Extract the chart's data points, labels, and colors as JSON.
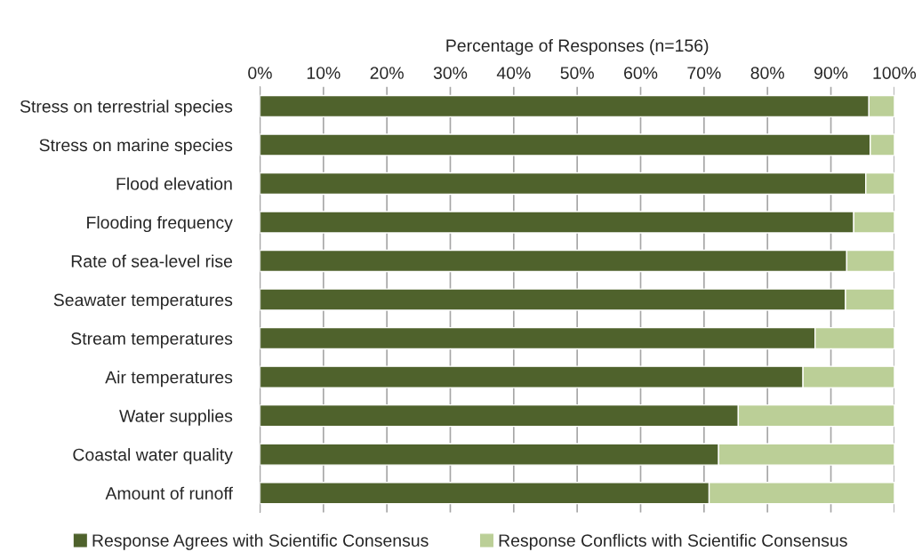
{
  "chart_data": {
    "type": "bar",
    "orientation": "horizontal",
    "stacked": true,
    "xlabel": "Percentage of Responses (n=156)",
    "categories": [
      "Stress on terrestrial species",
      "Stress on marine species",
      "Flood elevation",
      "Flooding frequency",
      "Rate of sea-level rise",
      "Seawater temperatures",
      "Stream temperatures",
      "Air temperatures",
      "Water supplies",
      "Coastal water quality",
      "Amount of runoff"
    ],
    "series": [
      {
        "name": "Response Agrees with Scientific Consensus",
        "color": "#4f622c",
        "values": [
          96.0,
          96.2,
          95.5,
          93.6,
          92.5,
          92.3,
          87.5,
          85.6,
          75.4,
          72.3,
          70.8
        ]
      },
      {
        "name": "Response Conflicts with Scientific Consensus",
        "color": "#bbcf97",
        "values": [
          4.0,
          3.8,
          4.5,
          6.4,
          7.5,
          7.7,
          12.5,
          14.4,
          24.6,
          27.7,
          29.2
        ]
      }
    ],
    "xlim": [
      0,
      100
    ],
    "xticks": [
      {
        "value": 0,
        "label": "0%"
      },
      {
        "value": 10,
        "label": "10%"
      },
      {
        "value": 20,
        "label": "20%"
      },
      {
        "value": 30,
        "label": "30%"
      },
      {
        "value": 40,
        "label": "40%"
      },
      {
        "value": 50,
        "label": "50%"
      },
      {
        "value": 60,
        "label": "60%"
      },
      {
        "value": 70,
        "label": "70%"
      },
      {
        "value": 80,
        "label": "80%"
      },
      {
        "value": 90,
        "label": "90%"
      },
      {
        "value": 100,
        "label": "100%"
      }
    ],
    "grid": "x",
    "legend": "bottom"
  }
}
